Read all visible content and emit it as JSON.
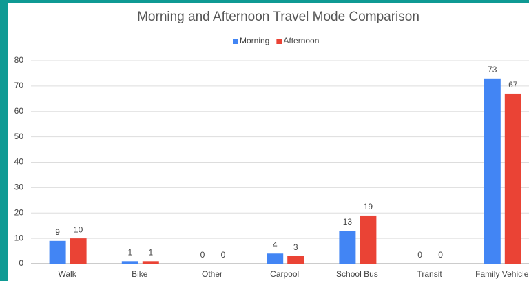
{
  "chart_data": {
    "type": "bar",
    "title": "Morning and Afternoon Travel Mode Comparison",
    "categories": [
      "Walk",
      "Bike",
      "Other",
      "Carpool",
      "School Bus",
      "Transit",
      "Family Vehicle"
    ],
    "series": [
      {
        "name": "Morning",
        "color": "#4285f4",
        "values": [
          9,
          1,
          0,
          4,
          13,
          0,
          73
        ]
      },
      {
        "name": "Afternoon",
        "color": "#ea4335",
        "values": [
          10,
          1,
          0,
          3,
          19,
          0,
          67
        ]
      }
    ],
    "ylim": [
      0,
      80
    ],
    "yticks": [
      0,
      10,
      20,
      30,
      40,
      50,
      60,
      70,
      80
    ],
    "grid": true,
    "legend": "top"
  }
}
